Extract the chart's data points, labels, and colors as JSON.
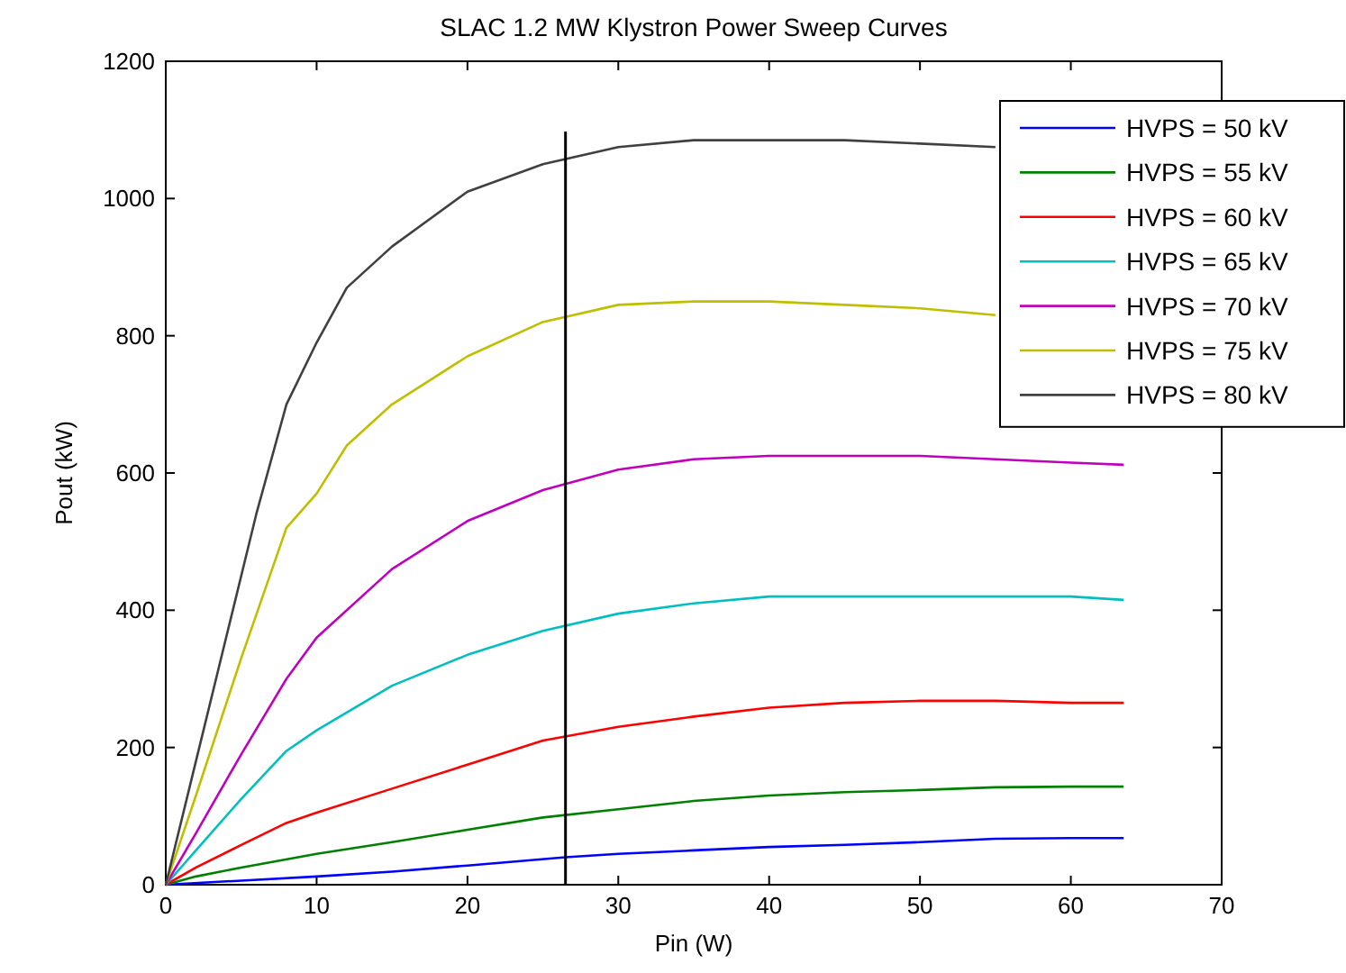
{
  "chart_data": {
    "type": "line",
    "title": "SLAC 1.2 MW Klystron Power Sweep Curves",
    "xlabel": "Pin (W)",
    "ylabel": "Pout (kW)",
    "xlim": [
      0,
      70
    ],
    "ylim": [
      0,
      1200
    ],
    "xticks": [
      0,
      10,
      20,
      30,
      40,
      50,
      60,
      70
    ],
    "yticks": [
      0,
      200,
      400,
      600,
      800,
      1000,
      1200
    ],
    "grid": false,
    "legend": "top right",
    "marker": "none",
    "line_style": "solid",
    "ref_lines": [
      {
        "axis": "x",
        "value": 26.5,
        "color": "#000000"
      }
    ],
    "series": [
      {
        "name": "HVPS = 50 kV",
        "color": "#0000ff",
        "x": [
          0,
          5,
          10,
          15,
          20,
          26.5,
          30,
          35,
          40,
          45,
          50,
          55,
          60,
          63.5
        ],
        "values": [
          0,
          6,
          12,
          19,
          28,
          40,
          45,
          50,
          55,
          58,
          62,
          67,
          68,
          68
        ]
      },
      {
        "name": "HVPS = 55 kV",
        "color": "#008000",
        "x": [
          0,
          2,
          5,
          10,
          15,
          20,
          25,
          30,
          35,
          40,
          45,
          50,
          55,
          60,
          63.5
        ],
        "values": [
          0,
          12,
          25,
          45,
          62,
          80,
          98,
          110,
          122,
          130,
          135,
          138,
          142,
          143,
          143
        ]
      },
      {
        "name": "HVPS = 60 kV",
        "color": "#ff0000",
        "x": [
          0,
          2,
          5,
          8,
          10,
          15,
          20,
          25,
          30,
          35,
          40,
          45,
          50,
          55,
          60,
          63.5
        ],
        "values": [
          0,
          25,
          58,
          90,
          105,
          140,
          175,
          210,
          230,
          245,
          258,
          265,
          268,
          268,
          265,
          265
        ]
      },
      {
        "name": "HVPS = 65 kV",
        "color": "#00bfbf",
        "x": [
          0,
          2,
          5,
          8,
          10,
          15,
          20,
          25,
          30,
          35,
          40,
          50,
          60,
          63.5
        ],
        "values": [
          0,
          50,
          125,
          195,
          225,
          290,
          335,
          370,
          395,
          410,
          420,
          420,
          420,
          415
        ]
      },
      {
        "name": "HVPS = 70 kV",
        "color": "#bf00bf",
        "x": [
          0,
          2,
          5,
          8,
          10,
          15,
          20,
          25,
          30,
          35,
          40,
          50,
          55,
          60,
          63.5
        ],
        "values": [
          0,
          75,
          190,
          300,
          360,
          460,
          530,
          575,
          605,
          620,
          625,
          625,
          620,
          615,
          612
        ]
      },
      {
        "name": "HVPS = 75 kV",
        "color": "#bfbf00",
        "x": [
          0,
          2,
          5,
          8,
          10,
          12,
          15,
          20,
          25,
          30,
          35,
          40,
          45,
          50,
          55
        ],
        "values": [
          0,
          130,
          330,
          520,
          570,
          640,
          700,
          770,
          820,
          845,
          850,
          850,
          845,
          840,
          830
        ]
      },
      {
        "name": "HVPS = 80 kV",
        "color": "#404040",
        "x": [
          0,
          2,
          4,
          6,
          8,
          10,
          12,
          15,
          20,
          25,
          30,
          35,
          40,
          45,
          50,
          55
        ],
        "values": [
          0,
          180,
          360,
          540,
          700,
          790,
          870,
          930,
          1010,
          1050,
          1075,
          1085,
          1085,
          1085,
          1080,
          1075
        ]
      }
    ]
  }
}
